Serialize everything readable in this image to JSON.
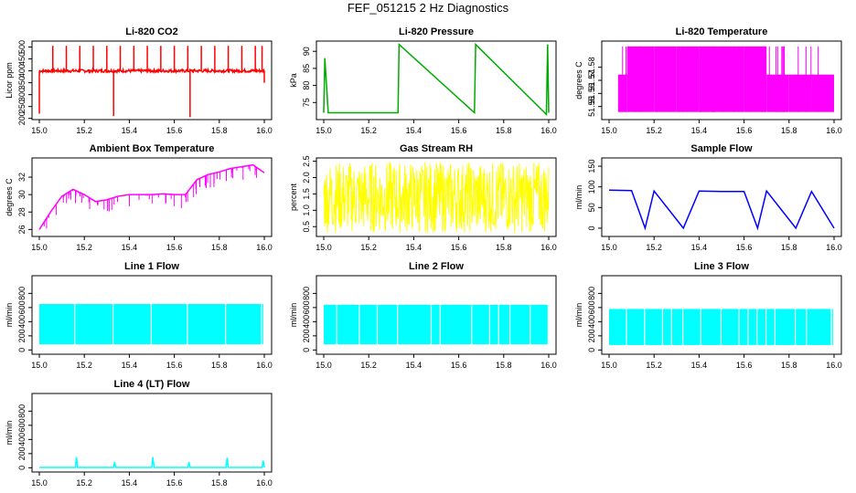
{
  "figure": {
    "title": "FEF_051215  2 Hz Diagnostics"
  },
  "chart_data": [
    {
      "type": "line",
      "title": "Li-820 CO2",
      "xlabel": "",
      "ylabel": "Licor ppm",
      "xlim": [
        15.0,
        16.0
      ],
      "ylim": [
        195,
        525
      ],
      "xticks": [
        "15.0",
        "15.2",
        "15.4",
        "15.6",
        "15.8",
        "16.0"
      ],
      "yticks": [
        200,
        250,
        300,
        350,
        400,
        450,
        500
      ],
      "color": "#ff0000",
      "series": [
        {
          "name": "CO2",
          "baseline": 400,
          "noise": 12,
          "x": [
            15.0,
            15.02,
            15.06,
            15.12,
            15.18,
            15.24,
            15.3,
            15.33,
            15.36,
            15.42,
            15.48,
            15.54,
            15.6,
            15.66,
            15.67,
            15.72,
            15.78,
            15.84,
            15.9,
            15.96,
            15.99,
            16.0
          ],
          "y": [
            220,
            395,
            505,
            505,
            505,
            505,
            505,
            210,
            505,
            505,
            505,
            505,
            505,
            505,
            205,
            505,
            505,
            505,
            505,
            505,
            505,
            350
          ]
        }
      ]
    },
    {
      "type": "line",
      "title": "Li-820 Pressure",
      "xlabel": "",
      "ylabel": "kPa",
      "xlim": [
        15.0,
        16.0
      ],
      "ylim": [
        70,
        93
      ],
      "xticks": [
        "15.0",
        "15.2",
        "15.4",
        "15.6",
        "15.8",
        "16.0"
      ],
      "yticks": [
        75,
        80,
        85,
        90
      ],
      "color": "#00aa00",
      "series": [
        {
          "name": "Pressure",
          "x": [
            15.0,
            15.005,
            15.02,
            15.33,
            15.335,
            15.67,
            15.675,
            15.99,
            15.995,
            16.0
          ],
          "y": [
            72.0,
            88.0,
            72.0,
            72.0,
            92.0,
            72.0,
            92.0,
            71.5,
            92.0,
            72.0
          ]
        }
      ]
    },
    {
      "type": "line",
      "title": "Li-820 Temperature",
      "xlabel": "",
      "ylabel": "degrees C",
      "xlim": [
        15.0,
        16.0
      ],
      "ylim": [
        51.54,
        51.6
      ],
      "xticks": [
        "15.0",
        "15.2",
        "15.4",
        "15.6",
        "15.8",
        "16.0"
      ],
      "yticks": [
        "51.55",
        "51.56",
        "51.57",
        "51.58"
      ],
      "color": "#ff00ff",
      "series": [
        {
          "name": "Temperature",
          "levels": [
            51.5458,
            51.5744,
            51.5959
          ],
          "x": [
            15.0,
            15.02,
            15.04,
            15.08,
            15.12,
            15.2,
            15.3,
            15.4,
            15.5,
            15.6,
            15.7,
            15.8,
            15.9,
            16.0
          ],
          "y": [
            51.5458,
            51.5458,
            51.5744,
            51.5959,
            51.5959,
            51.5959,
            51.5959,
            51.5959,
            51.5959,
            51.5959,
            51.5744,
            51.5744,
            51.5744,
            51.5744
          ]
        }
      ]
    },
    {
      "type": "line",
      "title": "Ambient Box Temperature",
      "xlabel": "",
      "ylabel": "degrees C",
      "xlim": [
        15.0,
        16.0
      ],
      "ylim": [
        25.2,
        34.2
      ],
      "xticks": [
        "15.0",
        "15.2",
        "15.4",
        "15.6",
        "15.8",
        "16.0"
      ],
      "yticks": [
        26,
        28,
        30,
        32
      ],
      "color": "#ff00ff",
      "series": [
        {
          "name": "Box Temperature",
          "x": [
            15.0,
            15.05,
            15.1,
            15.15,
            15.2,
            15.25,
            15.3,
            15.35,
            15.4,
            15.45,
            15.5,
            15.55,
            15.6,
            15.65,
            15.7,
            15.75,
            15.8,
            15.85,
            15.9,
            15.95,
            16.0
          ],
          "y": [
            26.0,
            28.0,
            29.8,
            30.6,
            30.0,
            29.2,
            29.4,
            29.8,
            30.0,
            30.0,
            30.0,
            30.1,
            30.0,
            30.0,
            31.7,
            32.3,
            32.6,
            33.0,
            33.2,
            33.4,
            32.5
          ]
        }
      ]
    },
    {
      "type": "line",
      "title": "Gas Stream RH",
      "xlabel": "",
      "ylabel": "percent",
      "xlim": [
        15.0,
        16.0
      ],
      "ylim": [
        0.2,
        2.6
      ],
      "xticks": [
        "15.0",
        "15.2",
        "15.4",
        "15.6",
        "15.8",
        "16.0"
      ],
      "yticks": [
        "0.5",
        "1.0",
        "1.5",
        "2.0",
        "2.5"
      ],
      "color": "#ffff00",
      "series": [
        {
          "name": "RH",
          "band_low": 0.3,
          "band_high": 2.5
        }
      ]
    },
    {
      "type": "line",
      "title": "Sample Flow",
      "xlabel": "",
      "ylabel": "ml/min",
      "xlim": [
        15.0,
        16.0
      ],
      "ylim": [
        -20,
        170
      ],
      "xticks": [
        "15.0",
        "15.2",
        "15.4",
        "15.6",
        "15.8",
        "16.0"
      ],
      "yticks": [
        0,
        50,
        100,
        150
      ],
      "color": "#0000ff",
      "series": [
        {
          "name": "Sample Flow",
          "x": [
            15.0,
            15.1,
            15.16,
            15.2,
            15.33,
            15.4,
            15.5,
            15.6,
            15.66,
            15.7,
            15.83,
            15.9,
            16.0
          ],
          "y": [
            92,
            91,
            0,
            90,
            0,
            90,
            89,
            89,
            0,
            90,
            0,
            89,
            0
          ]
        }
      ]
    },
    {
      "type": "line",
      "title": "Line 1 Flow",
      "xlabel": "",
      "ylabel": "ml/min",
      "xlim": [
        15.0,
        16.0
      ],
      "ylim": [
        -60,
        1050
      ],
      "xticks": [
        "15.0",
        "15.2",
        "15.4",
        "15.6",
        "15.8",
        "16.0"
      ],
      "yticks": [
        0,
        200,
        400,
        600,
        800
      ],
      "color": "#00ffff",
      "series": [
        {
          "name": "Line 1",
          "band_low": 80,
          "band_high": 650,
          "gaps": [
            15.16,
            15.33,
            15.5,
            15.66,
            15.83,
            15.99
          ]
        }
      ]
    },
    {
      "type": "line",
      "title": "Line 2 Flow",
      "xlabel": "",
      "ylabel": "ml/min",
      "xlim": [
        15.0,
        16.0
      ],
      "ylim": [
        -60,
        1050
      ],
      "xticks": [
        "15.0",
        "15.2",
        "15.4",
        "15.6",
        "15.8",
        "16.0"
      ],
      "yticks": [
        0,
        200,
        400,
        600,
        800
      ],
      "color": "#00ffff",
      "series": [
        {
          "name": "Line 2",
          "band_low": 80,
          "band_high": 640,
          "gaps": [
            15.06,
            15.16,
            15.24,
            15.33,
            15.48,
            15.52,
            15.66,
            15.74,
            15.78,
            15.83,
            15.92
          ]
        }
      ]
    },
    {
      "type": "line",
      "title": "Line 3 Flow",
      "xlabel": "",
      "ylabel": "ml/min",
      "xlim": [
        15.0,
        16.0
      ],
      "ylim": [
        -60,
        1050
      ],
      "xticks": [
        "15.0",
        "15.2",
        "15.4",
        "15.6",
        "15.8",
        "16.0"
      ],
      "yticks": [
        0,
        200,
        400,
        600,
        800
      ],
      "color": "#00ffff",
      "series": [
        {
          "name": "Line 3",
          "band_low": 70,
          "band_high": 580,
          "gaps": [
            15.08,
            15.16,
            15.24,
            15.28,
            15.33,
            15.41,
            15.5,
            15.58,
            15.62,
            15.66,
            15.7,
            15.74,
            15.83,
            15.88,
            15.99
          ]
        }
      ]
    },
    {
      "type": "line",
      "title": "Line 4 (LT) Flow",
      "xlabel": "",
      "ylabel": "ml/min",
      "xlim": [
        15.0,
        16.0
      ],
      "ylim": [
        -60,
        1050
      ],
      "xticks": [
        "15.0",
        "15.2",
        "15.4",
        "15.6",
        "15.8",
        "16.0"
      ],
      "yticks": [
        0,
        200,
        400,
        600,
        800
      ],
      "color": "#00ffff",
      "series": [
        {
          "name": "Line 4",
          "x": [
            15.0,
            15.16,
            15.165,
            15.17,
            15.33,
            15.335,
            15.34,
            15.5,
            15.505,
            15.51,
            15.66,
            15.665,
            15.67,
            15.83,
            15.835,
            15.84,
            15.99,
            15.995,
            16.0
          ],
          "y": [
            5,
            5,
            150,
            5,
            5,
            80,
            5,
            5,
            150,
            5,
            5,
            80,
            5,
            5,
            140,
            5,
            5,
            100,
            5
          ]
        }
      ]
    }
  ]
}
